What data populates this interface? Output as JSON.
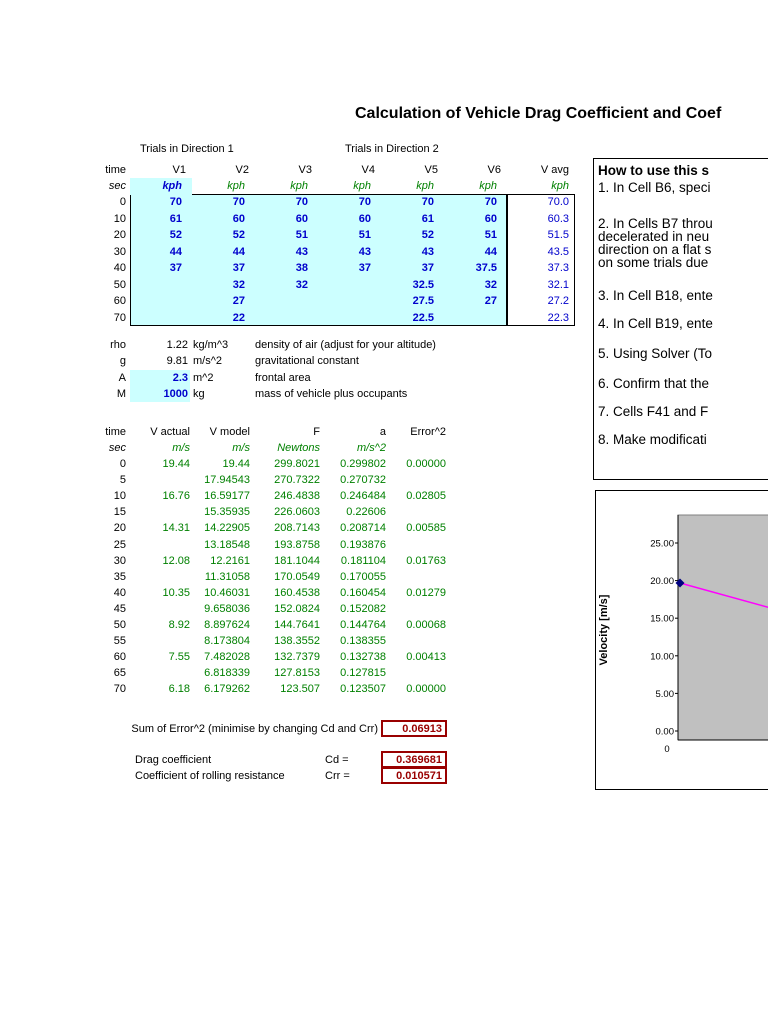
{
  "title": "Calculation of Vehicle Drag Coefficient and Coef",
  "trials": {
    "direction1_header": "Trials in Direction 1",
    "direction2_header": "Trials in Direction 2",
    "columns": [
      "time",
      "V1",
      "V2",
      "V3",
      "V4",
      "V5",
      "V6",
      "V avg"
    ],
    "units": [
      "sec",
      "kph",
      "kph",
      "kph",
      "kph",
      "kph",
      "kph",
      "kph"
    ],
    "rows": [
      {
        "time": "0",
        "values": [
          "70",
          "70",
          "70",
          "70",
          "70",
          "70"
        ],
        "avg": "70.0"
      },
      {
        "time": "10",
        "values": [
          "61",
          "60",
          "60",
          "60",
          "61",
          "60"
        ],
        "avg": "60.3"
      },
      {
        "time": "20",
        "values": [
          "52",
          "52",
          "51",
          "51",
          "52",
          "51"
        ],
        "avg": "51.5"
      },
      {
        "time": "30",
        "values": [
          "44",
          "44",
          "43",
          "43",
          "43",
          "44"
        ],
        "avg": "43.5"
      },
      {
        "time": "40",
        "values": [
          "37",
          "37",
          "38",
          "37",
          "37",
          "37.5"
        ],
        "avg": "37.3"
      },
      {
        "time": "50",
        "values": [
          "",
          "32",
          "32",
          "",
          "32.5",
          "32"
        ],
        "avg": "32.1"
      },
      {
        "time": "60",
        "values": [
          "",
          "27",
          "",
          "",
          "27.5",
          "27"
        ],
        "avg": "27.2"
      },
      {
        "time": "70",
        "values": [
          "",
          "22",
          "",
          "",
          "22.5",
          ""
        ],
        "avg": "22.3"
      }
    ]
  },
  "parameters": [
    {
      "symbol": "rho",
      "value": "1.22",
      "unit": "kg/m^3",
      "description": "density of air (adjust for your altitude)",
      "input": false
    },
    {
      "symbol": "g",
      "value": "9.81",
      "unit": "m/s^2",
      "description": "gravitational constant",
      "input": false
    },
    {
      "symbol": "A",
      "value": "2.3",
      "unit": "m^2",
      "description": "frontal area",
      "input": true
    },
    {
      "symbol": "M",
      "value": "1000",
      "unit": "kg",
      "description": "mass of vehicle plus occupants",
      "input": true
    }
  ],
  "model": {
    "columns": [
      "time",
      "V actual",
      "V model",
      "F",
      "a",
      "Error^2"
    ],
    "units": [
      "sec",
      "m/s",
      "m/s",
      "Newtons",
      "m/s^2",
      ""
    ],
    "rows": [
      [
        "0",
        "19.44",
        "19.44",
        "299.8021",
        "0.299802",
        "0.00000"
      ],
      [
        "5",
        "",
        "17.94543",
        "270.7322",
        "0.270732",
        ""
      ],
      [
        "10",
        "16.76",
        "16.59177",
        "246.4838",
        "0.246484",
        "0.02805"
      ],
      [
        "15",
        "",
        "15.35935",
        "226.0603",
        "0.22606",
        ""
      ],
      [
        "20",
        "14.31",
        "14.22905",
        "208.7143",
        "0.208714",
        "0.00585"
      ],
      [
        "25",
        "",
        "13.18548",
        "193.8758",
        "0.193876",
        ""
      ],
      [
        "30",
        "12.08",
        "12.2161",
        "181.1044",
        "0.181104",
        "0.01763"
      ],
      [
        "35",
        "",
        "11.31058",
        "170.0549",
        "0.170055",
        ""
      ],
      [
        "40",
        "10.35",
        "10.46031",
        "160.4538",
        "0.160454",
        "0.01279"
      ],
      [
        "45",
        "",
        "9.658036",
        "152.0824",
        "0.152082",
        ""
      ],
      [
        "50",
        "8.92",
        "8.897624",
        "144.7641",
        "0.144764",
        "0.00068"
      ],
      [
        "55",
        "",
        "8.173804",
        "138.3552",
        "0.138355",
        ""
      ],
      [
        "60",
        "7.55",
        "7.482028",
        "132.7379",
        "0.132738",
        "0.00413"
      ],
      [
        "65",
        "",
        "6.818339",
        "127.8153",
        "0.127815",
        ""
      ],
      [
        "70",
        "6.18",
        "6.179262",
        "123.507",
        "0.123507",
        "0.00000"
      ]
    ]
  },
  "results": {
    "sum_label": "Sum of Error^2 (minimise by changing Cd and Crr)",
    "sum_value": "0.06913",
    "cd_label": "Drag coefficient",
    "cd_symbol": "Cd =",
    "cd_value": "0.369681",
    "crr_label": "Coefficient of rolling resistance",
    "crr_symbol": "Crr =",
    "crr_value": "0.010571"
  },
  "instructions": {
    "heading": "How to use this s",
    "items": [
      [
        "1. In Cell B6, speci"
      ],
      [
        "2. In Cells B7 throu",
        "decelerated in neu",
        "direction on a flat s",
        "on some trials due"
      ],
      [
        "3. In Cell B18, ente"
      ],
      [
        "4. In Cell B19, ente"
      ],
      [
        "5. Using Solver (To"
      ],
      [
        "6. Confirm that the"
      ],
      [
        "7. Cells F41 and F"
      ],
      [
        "8. Make modificati"
      ]
    ]
  },
  "chart_data": {
    "type": "line",
    "ylabel": "Velocity [m/s]",
    "y_ticks": [
      "25.00",
      "20.00",
      "15.00",
      "10.00",
      "5.00",
      "0.00"
    ],
    "x_ticks": [
      "0"
    ],
    "ylim": [
      0,
      25
    ],
    "plot_bg": "#c0c0c0",
    "series": [
      {
        "name": "V actual",
        "marker": "diamond",
        "color": "#000080",
        "points": [
          [
            0,
            19.44
          ]
        ]
      },
      {
        "name": "V model",
        "style": "line",
        "color": "#ff00ff",
        "points": [
          [
            0,
            19.44
          ],
          [
            5,
            17.94543
          ],
          [
            10,
            16.59177
          ],
          [
            15,
            15.35935
          ],
          [
            20,
            14.22905
          ],
          [
            25,
            13.18548
          ],
          [
            30,
            12.2161
          ]
        ]
      }
    ],
    "note_visible_clipped": "chart is cut off at right page edge"
  },
  "colors": {
    "input_bg": "#ccffff",
    "input_text": "#0000cc",
    "computed_text": "#008000",
    "result_text": "#990000",
    "result_border": "#990000",
    "chart_plot_bg": "#c0c0c0"
  }
}
